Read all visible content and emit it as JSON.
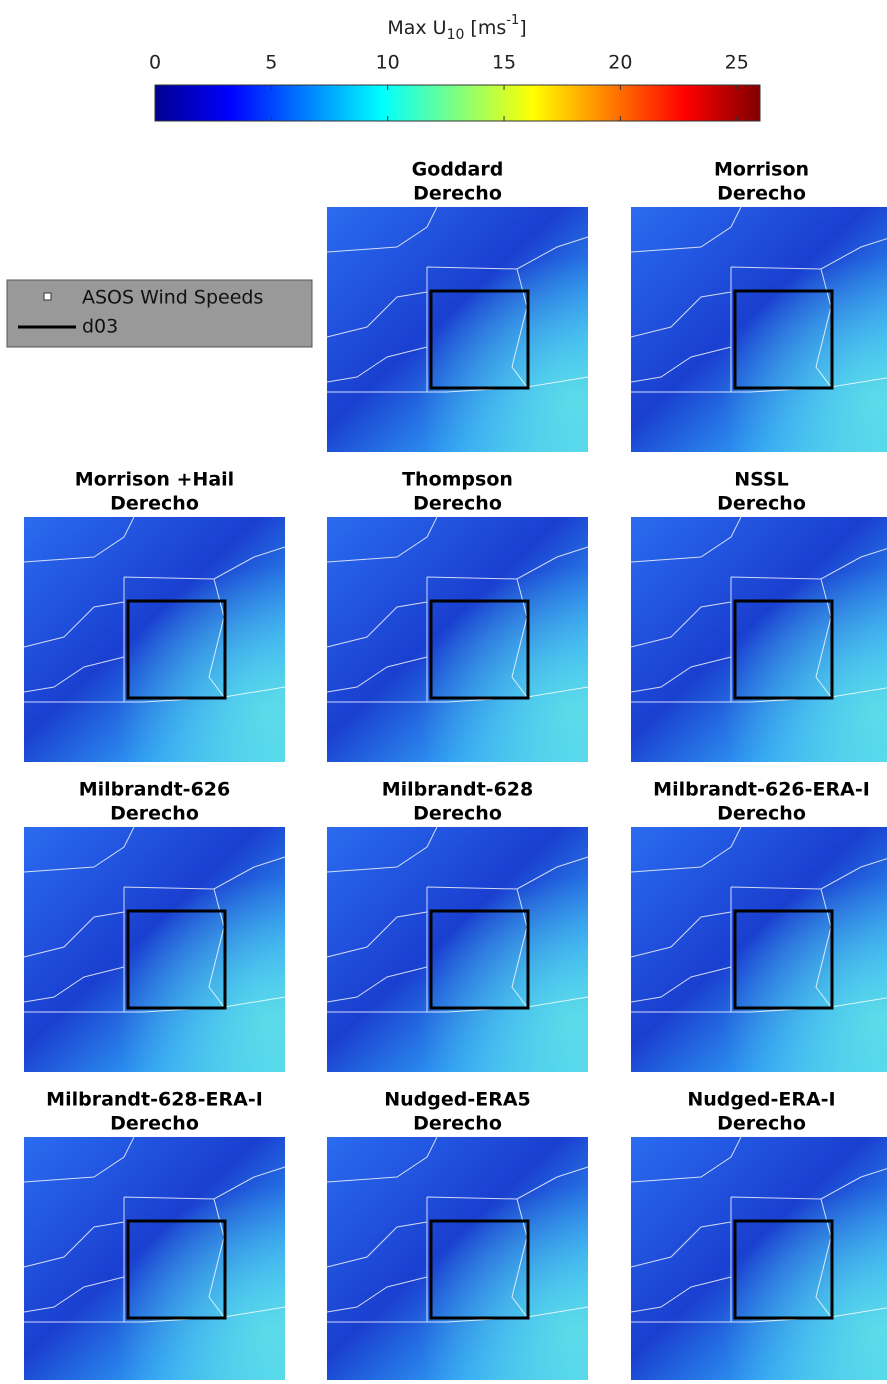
{
  "colorbar": {
    "title": {
      "text": "Max U",
      "sub": "10",
      "unit": "[ms",
      "sup": "-1",
      "close": "]"
    },
    "lim": [
      0,
      26
    ],
    "ticks": [
      0,
      5,
      10,
      15,
      20,
      25
    ]
  },
  "legend": {
    "items": [
      "ASOS Wind Speeds",
      "d03"
    ]
  },
  "panels": [
    {
      "title": "Goddard",
      "subtitle": "Derecho"
    },
    {
      "title": "Morrison",
      "subtitle": "Derecho"
    },
    {
      "title": "Morrison +Hail",
      "subtitle": "Derecho"
    },
    {
      "title": "Thompson",
      "subtitle": "Derecho"
    },
    {
      "title": "NSSL",
      "subtitle": "Derecho"
    },
    {
      "title": "Milbrandt-626",
      "subtitle": "Derecho"
    },
    {
      "title": "Milbrandt-628",
      "subtitle": "Derecho"
    },
    {
      "title": "Milbrandt-626-ERA-I",
      "subtitle": "Derecho"
    },
    {
      "title": "Milbrandt-628-ERA-I",
      "subtitle": "Derecho"
    },
    {
      "title": "Nudged-ERA5",
      "subtitle": "Derecho"
    },
    {
      "title": "Nudged-ERA-I",
      "subtitle": "Derecho"
    }
  ]
}
